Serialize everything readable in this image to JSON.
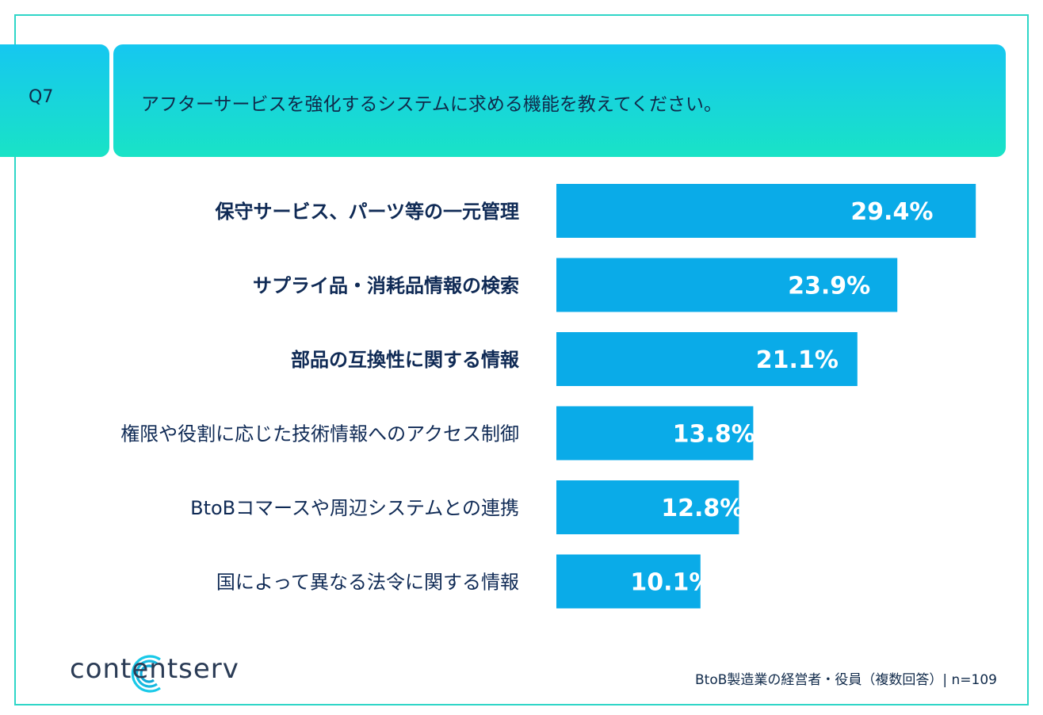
{
  "question": {
    "number": "Q7",
    "title": "アフターサービスを強化するシステムに求める機能を教えてください。"
  },
  "chart_data": {
    "type": "bar",
    "orientation": "horizontal",
    "categories": [
      "保守サービス、パーツ等の一元管理",
      "サプライ品・消耗品情報の検索",
      "部品の互換性に関する情報",
      "権限や役割に応じた技術情報へのアクセス制御",
      "BtoBコマースや周辺システムとの連携",
      "国によって異なる法令に関する情報"
    ],
    "values": [
      29.4,
      23.9,
      21.1,
      13.8,
      12.8,
      10.1
    ],
    "value_labels": [
      "29.4%",
      "23.9%",
      "21.1%",
      "13.8%",
      "12.8%",
      "10.1%"
    ],
    "bold_categories": [
      true,
      true,
      true,
      false,
      false,
      false
    ],
    "unit": "%",
    "xlim": [
      0,
      30
    ],
    "bar_color": "#0aabe8"
  },
  "brand": {
    "name": "contentserv"
  },
  "footnote": "BtoB製造業の経営者・役員（複数回答）| n=109"
}
